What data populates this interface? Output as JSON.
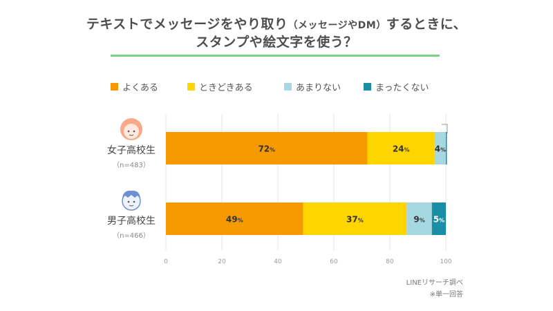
{
  "title": {
    "line1_main": "テキストでメッセージをやり取り",
    "line1_paren": "（メッセージやDM）",
    "line1_tail": "するときに、",
    "line2": "スタンプや絵文字を使う？"
  },
  "colors": {
    "yoku": "#f59a00",
    "tokidoki": "#ffd500",
    "amari": "#a6d8e2",
    "mattaku": "#1a8ea6",
    "rule": "#7ccf87"
  },
  "icons": [
    "girl-face-icon",
    "boy-face-icon"
  ],
  "chart_data": {
    "type": "bar",
    "orientation": "horizontal",
    "stacked": true,
    "categories": [
      "女子高校生",
      "男子高校生"
    ],
    "sample_sizes": [
      "（n=483）",
      "（n=466）"
    ],
    "series": [
      {
        "name": "よくある",
        "values": [
          72,
          49
        ]
      },
      {
        "name": "ときどきある",
        "values": [
          24,
          37
        ]
      },
      {
        "name": "あまりない",
        "values": [
          4,
          9
        ]
      },
      {
        "name": "まったくない",
        "values": [
          0,
          5
        ]
      }
    ],
    "value_suffix": "%",
    "xlim": [
      0,
      100
    ],
    "xticks": [
      0,
      20,
      40,
      60,
      80,
      100
    ],
    "grid": true,
    "legend_position": "top"
  },
  "source": {
    "line1": "LINEリサーチ調べ",
    "line2": "※単一回答"
  }
}
